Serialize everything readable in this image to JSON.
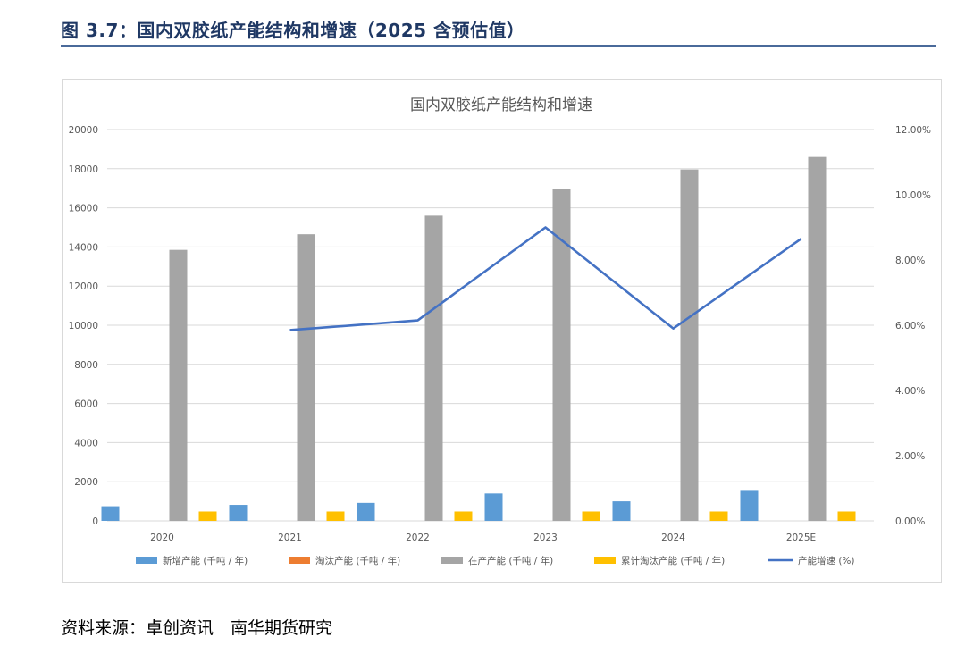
{
  "figure_title": "图 3.7：国内双胶纸产能结构和增速（2025 含预估值）",
  "source_text": "资料来源：卓创资讯　南华期货研究",
  "colors": {
    "title": "#1f3864",
    "rule": "#4a6a9a",
    "new_capacity": "#5b9bd5",
    "eliminated_capacity": "#ed7d31",
    "existing_capacity": "#a5a5a5",
    "cumulative_eliminated": "#ffc000",
    "growth_line": "#4472c4"
  },
  "chart_data": {
    "type": "bar",
    "title": "国内双胶纸产能结构和增速",
    "categories": [
      "2020",
      "2021",
      "2022",
      "2023",
      "2024",
      "2025E"
    ],
    "ylim": [
      0,
      20000
    ],
    "y_ticks": [
      "0",
      "2000",
      "4000",
      "6000",
      "8000",
      "10000",
      "12000",
      "14000",
      "16000",
      "18000",
      "20000"
    ],
    "y2lim": [
      0,
      12
    ],
    "y2_ticks": [
      "0.00%",
      "2.00%",
      "4.00%",
      "6.00%",
      "8.00%",
      "10.00%",
      "12.00%"
    ],
    "grid": true,
    "legend_position": "bottom",
    "series": [
      {
        "name": "新增产能 (千吨 / 年)",
        "type": "bar",
        "axis": "left",
        "color": "#5b9bd5",
        "values": [
          750,
          820,
          920,
          1400,
          1000,
          1580
        ]
      },
      {
        "name": "淘汰产能 (千吨 / 年)",
        "type": "bar",
        "axis": "left",
        "color": "#ed7d31",
        "values": [
          0,
          0,
          0,
          0,
          0,
          0
        ]
      },
      {
        "name": "在产产能 (千吨 / 年)",
        "type": "bar",
        "axis": "left",
        "color": "#a5a5a5",
        "values": [
          13850,
          14650,
          15600,
          16980,
          17960,
          18600
        ]
      },
      {
        "name": "累计淘汰产能 (千吨 / 年)",
        "type": "bar",
        "axis": "left",
        "color": "#ffc000",
        "values": [
          480,
          480,
          480,
          480,
          480,
          480
        ]
      },
      {
        "name": "产能增速 (%)",
        "type": "line",
        "axis": "right",
        "color": "#4472c4",
        "values": [
          null,
          5.85,
          6.15,
          9.0,
          5.9,
          8.65
        ]
      }
    ]
  }
}
